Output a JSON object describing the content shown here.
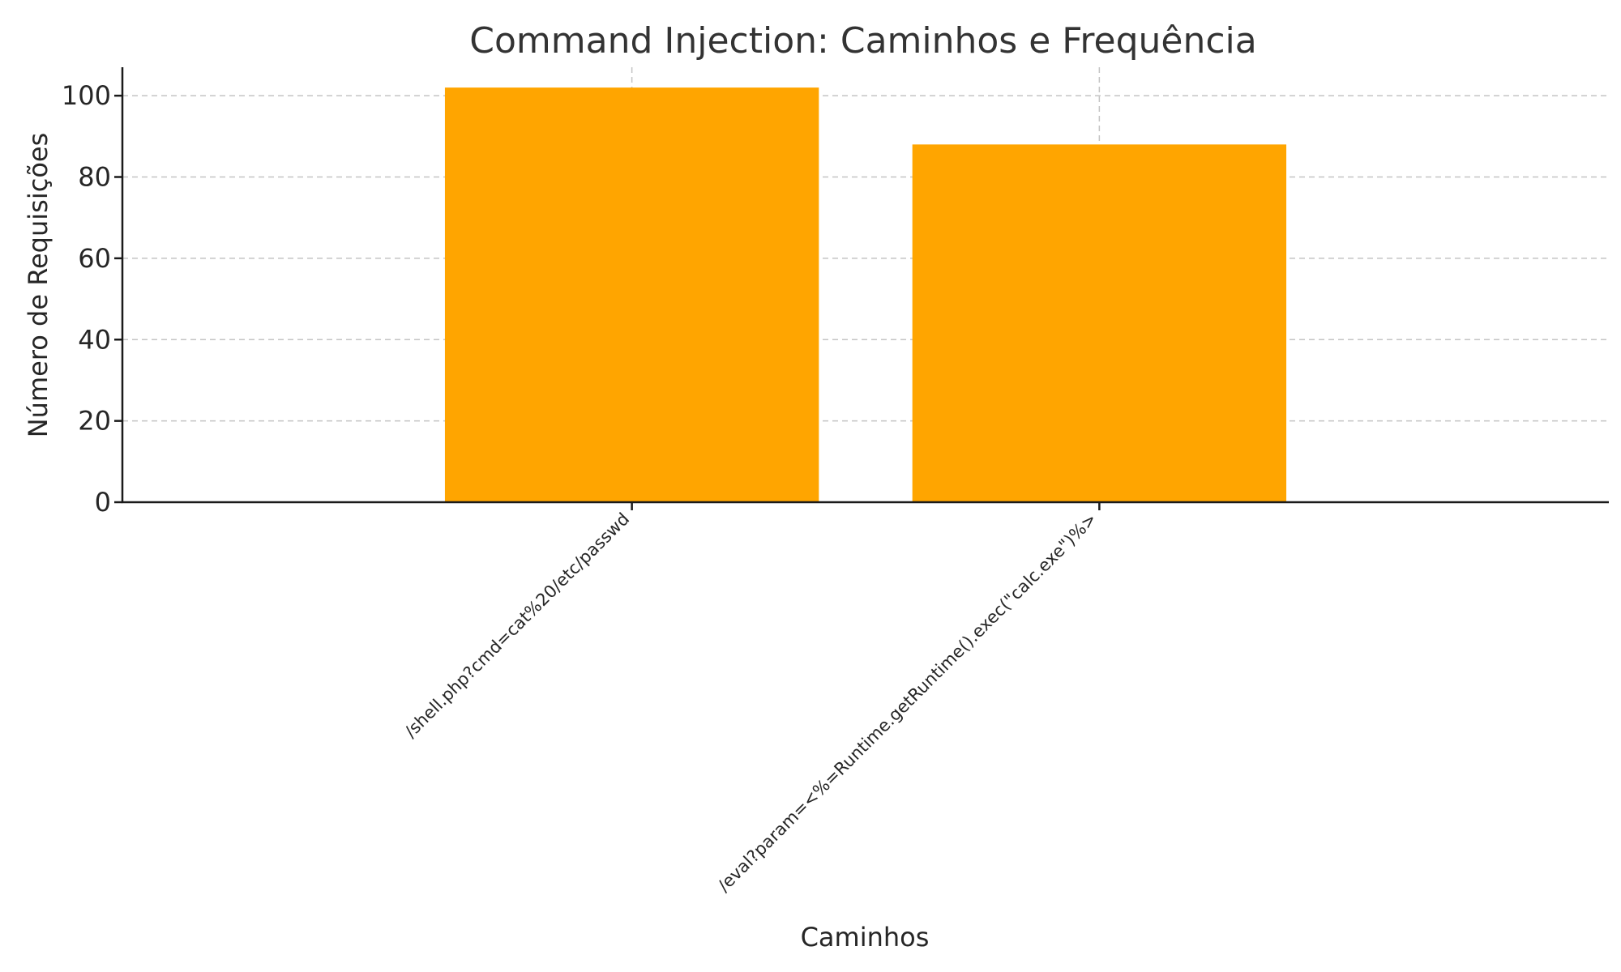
{
  "chart_data": {
    "type": "bar",
    "title": "Command Injection: Caminhos e Frequência",
    "xlabel": "Caminhos",
    "ylabel": "Número de Requisições",
    "categories": [
      "/shell.php?cmd=cat%20/etc/passwd",
      "/eval?param=<%=Runtime.getRuntime().exec(\"calc.exe\")%>"
    ],
    "values": [
      102,
      88
    ],
    "ylim": [
      0,
      107
    ],
    "yticks": [
      "0",
      "20",
      "40",
      "60",
      "80",
      "100"
    ],
    "bar_color": "#FFA500",
    "grid": true,
    "legend": "none"
  }
}
